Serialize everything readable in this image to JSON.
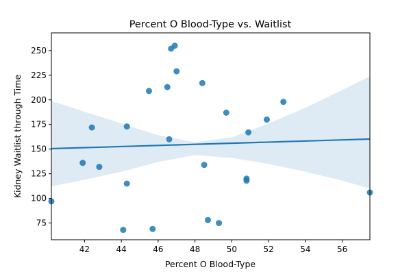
{
  "chart_data": {
    "type": "scatter",
    "title": "Percent O Blood-Type vs. Waitlist",
    "xlabel": "Percent O Blood-Type",
    "ylabel": "Kidney Waitlist through Time",
    "xlim": [
      40.2,
      57.5
    ],
    "ylim": [
      58,
      268
    ],
    "x_ticks": [
      42,
      44,
      46,
      48,
      50,
      52,
      54,
      56
    ],
    "y_ticks": [
      75,
      100,
      125,
      150,
      175,
      200,
      225,
      250
    ],
    "grid": false,
    "legend": "none",
    "points": [
      {
        "x": 40.2,
        "y": 97
      },
      {
        "x": 41.9,
        "y": 136
      },
      {
        "x": 42.4,
        "y": 172
      },
      {
        "x": 42.8,
        "y": 132
      },
      {
        "x": 44.1,
        "y": 68
      },
      {
        "x": 44.3,
        "y": 173
      },
      {
        "x": 44.3,
        "y": 115
      },
      {
        "x": 45.5,
        "y": 209
      },
      {
        "x": 45.7,
        "y": 69
      },
      {
        "x": 46.5,
        "y": 213
      },
      {
        "x": 46.6,
        "y": 160
      },
      {
        "x": 46.7,
        "y": 252
      },
      {
        "x": 46.9,
        "y": 255
      },
      {
        "x": 47.0,
        "y": 229
      },
      {
        "x": 48.4,
        "y": 217
      },
      {
        "x": 48.5,
        "y": 134
      },
      {
        "x": 48.7,
        "y": 78
      },
      {
        "x": 49.3,
        "y": 75
      },
      {
        "x": 49.7,
        "y": 187
      },
      {
        "x": 50.8,
        "y": 118
      },
      {
        "x": 50.8,
        "y": 120
      },
      {
        "x": 50.9,
        "y": 167
      },
      {
        "x": 51.9,
        "y": 180
      },
      {
        "x": 52.8,
        "y": 198
      },
      {
        "x": 57.5,
        "y": 106
      }
    ],
    "regression": {
      "x": [
        40.2,
        57.5
      ],
      "y": [
        150.5,
        160.2
      ]
    },
    "confidence_band": {
      "x": [
        40.2,
        42,
        44,
        46,
        48,
        50,
        52,
        54,
        56,
        57.5
      ],
      "upper": [
        199,
        188,
        176,
        164,
        157,
        162,
        176,
        192,
        210,
        224
      ],
      "lower": [
        112,
        119,
        127,
        137,
        144,
        141,
        135,
        127,
        118,
        110
      ]
    },
    "colors": {
      "points": "#1f77b4",
      "line": "#1f77b4",
      "band": "#1f77b4"
    }
  }
}
